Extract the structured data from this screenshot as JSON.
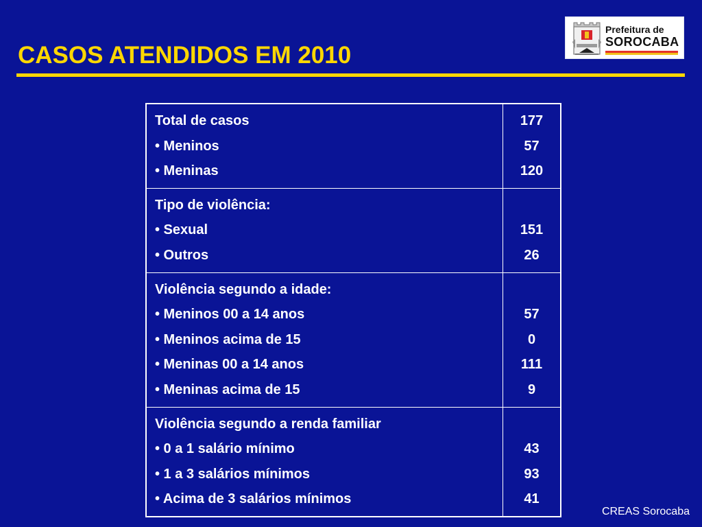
{
  "slide": {
    "title": "CASOS ATENDIDOS EM 2010",
    "footer": "CREAS Sorocaba"
  },
  "logo": {
    "line1": "Prefeitura de",
    "line2": "SOROCABA"
  },
  "table": {
    "sections": [
      {
        "heading": "Total de casos",
        "heading_value": "177",
        "items": [
          {
            "label": "• Meninos",
            "value": "57"
          },
          {
            "label": "• Meninas",
            "value": "120"
          }
        ]
      },
      {
        "heading": "Tipo de violência:",
        "heading_value": "",
        "items": [
          {
            "label": "• Sexual",
            "value": "151"
          },
          {
            "label": "• Outros",
            "value": "26"
          }
        ]
      },
      {
        "heading": "Violência segundo a idade:",
        "heading_value": "",
        "items": [
          {
            "label": "• Meninos 00 a 14 anos",
            "value": "57"
          },
          {
            "label": "• Meninos acima de 15",
            "value": "0"
          },
          {
            "label": "• Meninas 00 a 14 anos",
            "value": "111"
          },
          {
            "label": "• Meninas acima de 15",
            "value": "9"
          }
        ]
      },
      {
        "heading": "Violência segundo a renda familiar",
        "heading_value": "",
        "items": [
          {
            "label": "• 0 a 1 salário mínimo",
            "value": "43"
          },
          {
            "label": "• 1 a 3 salários mínimos",
            "value": "93"
          },
          {
            "label": "• Acima de 3 salários mínimos",
            "value": "41"
          }
        ]
      }
    ]
  },
  "colors": {
    "background": "#0a1496",
    "title": "#ffd700",
    "text": "#ffffff"
  },
  "icons": {
    "logo_crest": "city-coat-of-arms-icon"
  }
}
